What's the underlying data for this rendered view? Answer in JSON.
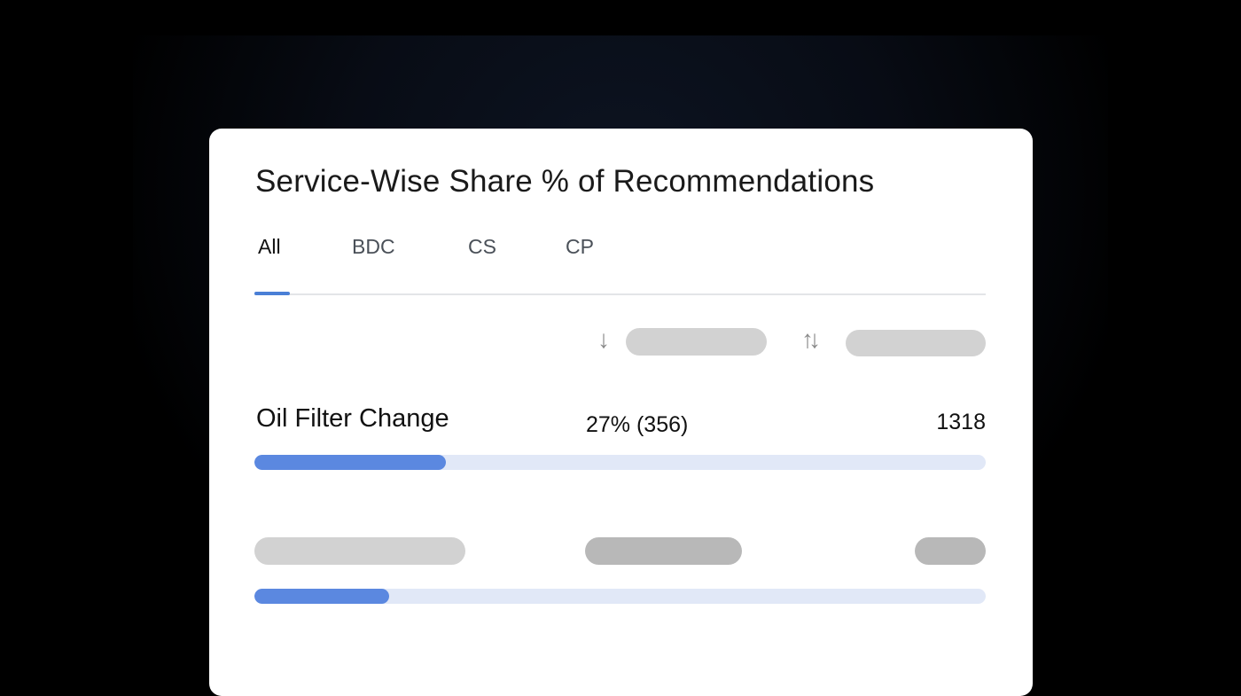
{
  "card": {
    "title": "Service-Wise Share % of Recommendations",
    "tabs": [
      {
        "label": "All",
        "active": true
      },
      {
        "label": "BDC",
        "active": false
      },
      {
        "label": "CS",
        "active": false
      },
      {
        "label": "CP",
        "active": false
      }
    ],
    "controls": {
      "sort_icon": "arrow-down-icon",
      "toggle_icon": "swap-vertical-icon"
    },
    "rows": [
      {
        "service": "Oil Filter Change",
        "share": "27% (356)",
        "total": "1318",
        "progress_percent": 27
      },
      {
        "service": "",
        "share": "",
        "total": "",
        "progress_percent": 19,
        "placeholder": true
      }
    ],
    "colors": {
      "accent": "#4a7fd6",
      "bar_fill": "#5b88e0",
      "bar_track": "#e1e8f7"
    }
  }
}
